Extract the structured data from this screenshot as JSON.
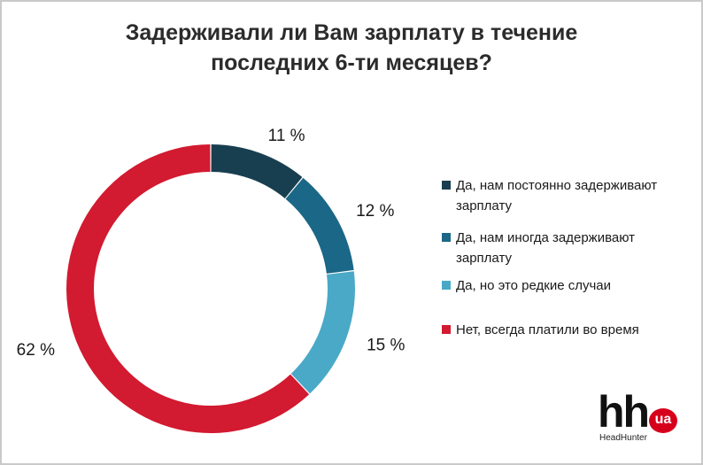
{
  "chart_data": {
    "type": "pie",
    "title": "Задерживали ли Вам зарплату в течение последних 6-ти месяцев?",
    "title_lines": [
      "Задерживали ли Вам зарплату в течение",
      "последних 6-ти месяцев?"
    ],
    "categories": [
      "Да, нам постоянно задерживают зарплату",
      "Да, нам иногда задерживают зарплату",
      "Да, но это редкие случаи",
      "Нет, всегда платили во время"
    ],
    "values": [
      11,
      12,
      15,
      62
    ],
    "value_labels": [
      "11 %",
      "12 %",
      "15 %",
      "62 %"
    ],
    "colors": [
      "#183f4f",
      "#1b6787",
      "#4aa9c7",
      "#d21a30"
    ],
    "donut": true,
    "legend_position": "right"
  },
  "legend": {
    "items": [
      {
        "label": "Да, нам постоянно задерживают зарплату",
        "color": "#183f4f"
      },
      {
        "label": "Да, нам иногда задерживают зарплату",
        "color": "#1b6787"
      },
      {
        "label": "Да, но это редкие случаи",
        "color": "#4aa9c7"
      },
      {
        "label": "Нет, всегда платили во время",
        "color": "#d21a30"
      }
    ]
  },
  "logo": {
    "main": "hh",
    "badge": "ua",
    "subtitle": "HeadHunter"
  }
}
